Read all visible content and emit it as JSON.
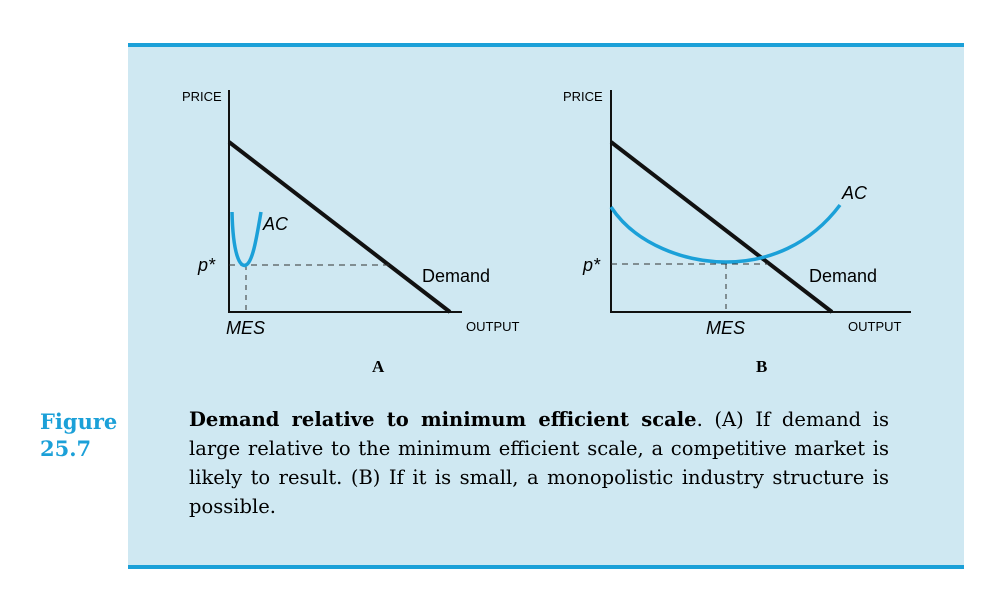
{
  "figure": {
    "label_word": "Figure",
    "label_number": "25.7"
  },
  "panels": [
    {
      "id": "A",
      "y_axis_label": "PRICE",
      "x_axis_label": "OUTPUT",
      "price_label": "p*",
      "mes_label": "MES",
      "ac_label": "AC",
      "demand_label": "Demand",
      "panel_letter": "A"
    },
    {
      "id": "B",
      "y_axis_label": "PRICE",
      "x_axis_label": "OUTPUT",
      "price_label": "p*",
      "mes_label": "MES",
      "ac_label": "AC",
      "demand_label": "Demand",
      "panel_letter": "B"
    }
  ],
  "caption": {
    "title": "Demand relative to minimum efficient scale",
    "body": ". (A) If demand is large relative to the minimum efficient scale, a competitive market is likely to result. (B) If it is small, a monopolistic industry structure is possible."
  },
  "colors": {
    "accent": "#1ba0d8",
    "panel_background": "#cfe8f2",
    "ac_curve": "#1ba0d8",
    "demand_line": "#111111"
  }
}
